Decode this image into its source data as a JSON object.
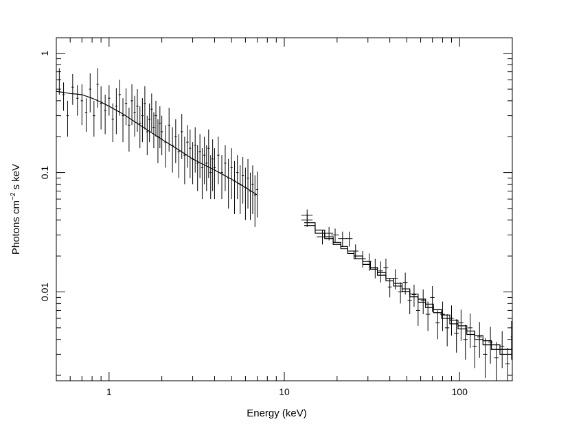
{
  "chart_data": {
    "type": "scatter",
    "title": "",
    "xlabel": "Energy (keV)",
    "ylabel_main": "Photons cm",
    "ylabel_sup": "−2",
    "ylabel_rest": " s keV",
    "x_scale": "log",
    "y_scale": "log",
    "xlim": [
      0.5,
      200
    ],
    "ylim": [
      0.0018,
      1.35
    ],
    "grid": false,
    "legend": "none",
    "x_ticks": [
      {
        "value": 1,
        "label": "1"
      },
      {
        "value": 10,
        "label": "10"
      },
      {
        "value": 100,
        "label": "100"
      }
    ],
    "y_ticks": [
      {
        "value": 0.01,
        "label": "0.01"
      },
      {
        "value": 0.1,
        "label": "0.1"
      },
      {
        "value": 1,
        "label": "1"
      }
    ],
    "soft_band": {
      "range_keV": [
        0.5,
        7.0
      ],
      "model_points": [
        [
          0.5,
          0.48
        ],
        [
          0.55,
          0.47
        ],
        [
          0.6,
          0.46
        ],
        [
          0.65,
          0.455
        ],
        [
          0.7,
          0.45
        ],
        [
          0.8,
          0.42
        ],
        [
          0.9,
          0.39
        ],
        [
          1.0,
          0.36
        ],
        [
          1.2,
          0.31
        ],
        [
          1.5,
          0.25
        ],
        [
          2.0,
          0.19
        ],
        [
          2.5,
          0.155
        ],
        [
          3.0,
          0.13
        ],
        [
          4.0,
          0.105
        ],
        [
          5.0,
          0.088
        ],
        [
          6.0,
          0.075
        ],
        [
          7.0,
          0.065
        ]
      ],
      "data_points": [
        [
          0.52,
          0.6,
          0.15
        ],
        [
          0.55,
          0.45,
          0.12
        ],
        [
          0.58,
          0.3,
          0.1
        ],
        [
          0.62,
          0.52,
          0.15
        ],
        [
          0.66,
          0.42,
          0.12
        ],
        [
          0.7,
          0.4,
          0.15
        ],
        [
          0.74,
          0.32,
          0.1
        ],
        [
          0.78,
          0.5,
          0.18
        ],
        [
          0.82,
          0.3,
          0.1
        ],
        [
          0.86,
          0.55,
          0.2
        ],
        [
          0.9,
          0.38,
          0.15
        ],
        [
          0.95,
          0.33,
          0.12
        ],
        [
          1.0,
          0.42,
          0.12
        ],
        [
          1.05,
          0.28,
          0.1
        ],
        [
          1.1,
          0.36,
          0.15
        ],
        [
          1.15,
          0.45,
          0.15
        ],
        [
          1.2,
          0.3,
          0.12
        ],
        [
          1.25,
          0.38,
          0.13
        ],
        [
          1.3,
          0.25,
          0.1
        ],
        [
          1.35,
          0.4,
          0.15
        ],
        [
          1.4,
          0.32,
          0.12
        ],
        [
          1.45,
          0.36,
          0.14
        ],
        [
          1.5,
          0.26,
          0.1
        ],
        [
          1.55,
          0.3,
          0.12
        ],
        [
          1.6,
          0.38,
          0.15
        ],
        [
          1.65,
          0.22,
          0.08
        ],
        [
          1.7,
          0.28,
          0.1
        ],
        [
          1.75,
          0.34,
          0.12
        ],
        [
          1.8,
          0.24,
          0.08
        ],
        [
          1.85,
          0.3,
          0.1
        ],
        [
          1.9,
          0.2,
          0.08
        ],
        [
          1.95,
          0.26,
          0.1
        ],
        [
          2.0,
          0.22,
          0.08
        ],
        [
          2.1,
          0.18,
          0.07
        ],
        [
          2.2,
          0.25,
          0.1
        ],
        [
          2.3,
          0.17,
          0.07
        ],
        [
          2.4,
          0.2,
          0.08
        ],
        [
          2.5,
          0.15,
          0.06
        ],
        [
          2.6,
          0.22,
          0.09
        ],
        [
          2.7,
          0.14,
          0.06
        ],
        [
          2.8,
          0.18,
          0.07
        ],
        [
          2.9,
          0.16,
          0.07
        ],
        [
          3.0,
          0.13,
          0.05
        ],
        [
          3.1,
          0.17,
          0.07
        ],
        [
          3.2,
          0.12,
          0.05
        ],
        [
          3.3,
          0.15,
          0.06
        ],
        [
          3.4,
          0.11,
          0.05
        ],
        [
          3.5,
          0.14,
          0.06
        ],
        [
          3.6,
          0.12,
          0.05
        ],
        [
          3.7,
          0.16,
          0.07
        ],
        [
          3.8,
          0.1,
          0.04
        ],
        [
          3.9,
          0.13,
          0.06
        ],
        [
          4.0,
          0.11,
          0.05
        ],
        [
          4.2,
          0.14,
          0.06
        ],
        [
          4.4,
          0.1,
          0.04
        ],
        [
          4.6,
          0.12,
          0.05
        ],
        [
          4.8,
          0.09,
          0.04
        ],
        [
          5.0,
          0.11,
          0.05
        ],
        [
          5.2,
          0.085,
          0.04
        ],
        [
          5.4,
          0.1,
          0.04
        ],
        [
          5.6,
          0.08,
          0.035
        ],
        [
          5.8,
          0.095,
          0.04
        ],
        [
          6.0,
          0.075,
          0.035
        ],
        [
          6.2,
          0.09,
          0.04
        ],
        [
          6.4,
          0.07,
          0.03
        ],
        [
          6.6,
          0.08,
          0.035
        ],
        [
          6.8,
          0.065,
          0.03
        ],
        [
          7.0,
          0.072,
          0.03
        ]
      ]
    },
    "hard_band": {
      "range_keV": [
        13,
        200
      ],
      "model_steps": [
        [
          13,
          15,
          0.038
        ],
        [
          15,
          17,
          0.033
        ],
        [
          17,
          19,
          0.029
        ],
        [
          19,
          21,
          0.026
        ],
        [
          21,
          23,
          0.024
        ],
        [
          23,
          25,
          0.022
        ],
        [
          25,
          28,
          0.02
        ],
        [
          28,
          31,
          0.018
        ],
        [
          31,
          34,
          0.016
        ],
        [
          34,
          38,
          0.0145
        ],
        [
          38,
          42,
          0.013
        ],
        [
          42,
          47,
          0.0118
        ],
        [
          47,
          52,
          0.0106
        ],
        [
          52,
          58,
          0.0096
        ],
        [
          58,
          64,
          0.0087
        ],
        [
          64,
          71,
          0.0079
        ],
        [
          71,
          79,
          0.0071
        ],
        [
          79,
          88,
          0.0064
        ],
        [
          88,
          98,
          0.0058
        ],
        [
          98,
          110,
          0.0052
        ],
        [
          110,
          122,
          0.0047
        ],
        [
          122,
          136,
          0.0043
        ],
        [
          136,
          152,
          0.0039
        ],
        [
          152,
          170,
          0.0036
        ],
        [
          170,
          200,
          0.0033
        ]
      ],
      "model2_steps": [
        [
          13,
          15,
          0.036
        ],
        [
          15,
          17,
          0.031
        ],
        [
          17,
          19,
          0.028
        ],
        [
          19,
          21,
          0.025
        ],
        [
          21,
          23,
          0.023
        ],
        [
          23,
          25,
          0.021
        ],
        [
          25,
          28,
          0.019
        ],
        [
          28,
          31,
          0.017
        ],
        [
          31,
          34,
          0.0155
        ],
        [
          34,
          38,
          0.0138
        ],
        [
          38,
          42,
          0.0124
        ],
        [
          42,
          47,
          0.0112
        ],
        [
          47,
          52,
          0.0101
        ],
        [
          52,
          58,
          0.0091
        ],
        [
          58,
          64,
          0.0082
        ],
        [
          64,
          71,
          0.0074
        ],
        [
          71,
          79,
          0.0067
        ],
        [
          79,
          88,
          0.006
        ],
        [
          88,
          98,
          0.0054
        ],
        [
          98,
          110,
          0.0049
        ],
        [
          110,
          122,
          0.0044
        ],
        [
          122,
          136,
          0.004
        ],
        [
          136,
          152,
          0.0036
        ],
        [
          152,
          170,
          0.0033
        ],
        [
          170,
          200,
          0.003
        ]
      ],
      "data_points": [
        [
          13.5,
          0.04,
          0.005,
          1.0
        ],
        [
          13.5,
          0.044,
          0.005,
          1.0
        ],
        [
          16.5,
          0.029,
          0.004,
          1.2
        ],
        [
          18.0,
          0.031,
          0.004,
          1.0
        ],
        [
          19.5,
          0.03,
          0.004,
          1.0
        ],
        [
          21.5,
          0.028,
          0.004,
          1.2
        ],
        [
          23.5,
          0.028,
          0.004,
          1.0
        ],
        [
          25.5,
          0.022,
          0.003,
          1.0
        ],
        [
          28.0,
          0.019,
          0.003,
          1.2
        ],
        [
          30.5,
          0.018,
          0.003,
          1.0
        ],
        [
          33.0,
          0.016,
          0.003,
          1.2
        ],
        [
          35.5,
          0.015,
          0.003,
          1.0
        ],
        [
          38.0,
          0.016,
          0.003,
          1.2
        ],
        [
          40.0,
          0.011,
          0.002,
          1.0
        ],
        [
          43.0,
          0.013,
          0.0025,
          1.5
        ],
        [
          46.0,
          0.01,
          0.002,
          1.5
        ],
        [
          49.0,
          0.012,
          0.0025,
          1.5
        ],
        [
          52.0,
          0.0085,
          0.002,
          1.5
        ],
        [
          55.0,
          0.0095,
          0.002,
          1.5
        ],
        [
          58.0,
          0.007,
          0.0018,
          1.5
        ],
        [
          62.0,
          0.0085,
          0.002,
          2.0
        ],
        [
          66.0,
          0.0065,
          0.0018,
          2.0
        ],
        [
          70.0,
          0.009,
          0.0022,
          2.0
        ],
        [
          75.0,
          0.0055,
          0.0015,
          2.0
        ],
        [
          80.0,
          0.0065,
          0.0018,
          2.5
        ],
        [
          85.0,
          0.005,
          0.0015,
          2.5
        ],
        [
          90.0,
          0.006,
          0.0017,
          2.5
        ],
        [
          96.0,
          0.0045,
          0.0014,
          3.0
        ],
        [
          102.0,
          0.0055,
          0.0016,
          3.0
        ],
        [
          108.0,
          0.004,
          0.0013,
          3.0
        ],
        [
          115.0,
          0.005,
          0.0016,
          3.5
        ],
        [
          122.0,
          0.0035,
          0.0012,
          3.5
        ],
        [
          130.0,
          0.0042,
          0.0014,
          4.0
        ],
        [
          140.0,
          0.003,
          0.0011,
          4.0
        ],
        [
          150.0,
          0.0038,
          0.0013,
          4.5
        ],
        [
          162.0,
          0.0028,
          0.001,
          5.0
        ],
        [
          175.0,
          0.0035,
          0.0012,
          5.0
        ],
        [
          188.0,
          0.0025,
          0.0009,
          5.5
        ],
        [
          198.0,
          0.0042,
          0.0015,
          2.0
        ]
      ]
    }
  }
}
